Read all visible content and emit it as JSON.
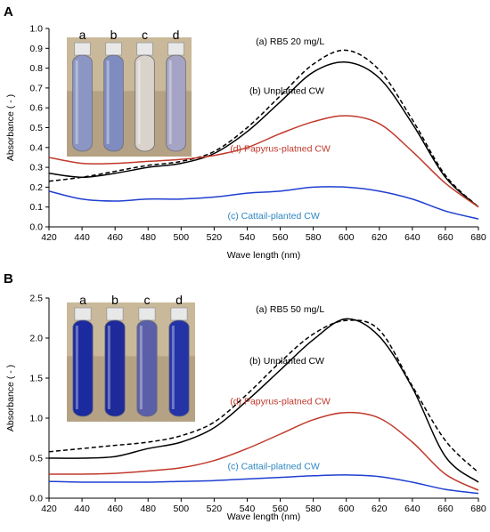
{
  "chart_data": [
    {
      "panel_label": "A",
      "type": "line",
      "xlabel": "Wave length (nm)",
      "ylabel": "Absorbance  ( - )",
      "xlim": [
        420,
        680
      ],
      "ylim": [
        0,
        1.0
      ],
      "x_ticks": [
        420,
        440,
        460,
        480,
        500,
        520,
        540,
        560,
        580,
        600,
        620,
        640,
        660,
        680
      ],
      "y_ticks": [
        0.0,
        0.1,
        0.2,
        0.3,
        0.4,
        0.5,
        0.6,
        0.7,
        0.8,
        0.9,
        1.0
      ],
      "y_tick_labels": [
        "0.0",
        "0.1",
        "0.2",
        "0.3",
        "0.4",
        "0.5",
        "0.6",
        "0.7",
        "0.8",
        "0.9",
        "1.0"
      ],
      "grid": false,
      "inset_photo": {
        "tube_labels": [
          "a",
          "b",
          "c",
          "d"
        ],
        "tube_colors": [
          "#8c96c4",
          "#7e8cbf",
          "#d9d3cb",
          "#a6a4c4"
        ]
      },
      "series": [
        {
          "name": "(a) RB5  20 mg/L",
          "color": "#000000",
          "dashed": true,
          "x": [
            420,
            440,
            460,
            480,
            500,
            520,
            540,
            560,
            580,
            600,
            620,
            640,
            660,
            680
          ],
          "y": [
            0.23,
            0.25,
            0.28,
            0.31,
            0.33,
            0.38,
            0.5,
            0.66,
            0.82,
            0.89,
            0.79,
            0.54,
            0.26,
            0.1
          ]
        },
        {
          "name": "(b) Unplanted CW",
          "color": "#000000",
          "dashed": false,
          "x": [
            420,
            440,
            460,
            480,
            500,
            520,
            540,
            560,
            580,
            600,
            620,
            640,
            660,
            680
          ],
          "y": [
            0.27,
            0.25,
            0.27,
            0.3,
            0.32,
            0.37,
            0.48,
            0.63,
            0.78,
            0.83,
            0.75,
            0.52,
            0.25,
            0.1
          ]
        },
        {
          "name": "(d) Papyrus-platned CW",
          "color": "#c0392b",
          "dashed": false,
          "x": [
            420,
            440,
            460,
            480,
            500,
            520,
            540,
            560,
            580,
            600,
            620,
            640,
            660,
            680
          ],
          "y": [
            0.35,
            0.32,
            0.32,
            0.33,
            0.34,
            0.36,
            0.4,
            0.47,
            0.53,
            0.56,
            0.52,
            0.38,
            0.22,
            0.1
          ]
        },
        {
          "name": "(c) Cattail-planted CW",
          "color": "#1f3fd0",
          "dashed": false,
          "x": [
            420,
            440,
            460,
            480,
            500,
            520,
            540,
            560,
            580,
            600,
            620,
            640,
            660,
            680
          ],
          "y": [
            0.18,
            0.14,
            0.13,
            0.14,
            0.14,
            0.15,
            0.17,
            0.18,
            0.2,
            0.2,
            0.18,
            0.14,
            0.08,
            0.04
          ]
        }
      ],
      "series_labels": [
        {
          "text": "(a) RB5  20 mg/L",
          "color": "#000000",
          "x": 566,
          "y": 0.92
        },
        {
          "text": "(b) Unplanted CW",
          "color": "#000000",
          "x": 564,
          "y": 0.67
        },
        {
          "text": "(d) Papyrus-platned CW",
          "color": "#c0392b",
          "x": 560,
          "y": 0.38
        },
        {
          "text": "(c) Cattail-planted CW",
          "color": "#2e86c1",
          "x": 556,
          "y": 0.04
        }
      ]
    },
    {
      "panel_label": "B",
      "type": "line",
      "xlabel": "Wave length (nm)",
      "ylabel": "Absorbance  ( - )",
      "xlim": [
        420,
        680
      ],
      "ylim": [
        0,
        2.5
      ],
      "x_ticks": [
        420,
        440,
        460,
        480,
        500,
        520,
        540,
        560,
        580,
        600,
        620,
        640,
        660,
        680
      ],
      "y_ticks": [
        0.0,
        0.5,
        1.0,
        1.5,
        2.0,
        2.5
      ],
      "y_tick_labels": [
        "0.0",
        "0.5",
        "1.0",
        "1.5",
        "2.0",
        "2.5"
      ],
      "grid": false,
      "inset_photo": {
        "tube_labels": [
          "a",
          "b",
          "c",
          "d"
        ],
        "tube_colors": [
          "#1c2aa0",
          "#1f2a9a",
          "#5a5fa8",
          "#2433a6"
        ]
      },
      "series": [
        {
          "name": "(a) RB5  50 mg/L",
          "color": "#000000",
          "dashed": true,
          "x": [
            420,
            440,
            460,
            480,
            500,
            520,
            540,
            560,
            580,
            600,
            620,
            640,
            660,
            680
          ],
          "y": [
            0.58,
            0.62,
            0.66,
            0.7,
            0.78,
            0.95,
            1.3,
            1.7,
            2.05,
            2.22,
            2.1,
            1.4,
            0.72,
            0.32
          ]
        },
        {
          "name": "(b) Unplanted CW",
          "color": "#000000",
          "dashed": false,
          "x": [
            420,
            440,
            460,
            480,
            500,
            520,
            540,
            560,
            580,
            600,
            620,
            640,
            660,
            680
          ],
          "y": [
            0.5,
            0.5,
            0.52,
            0.62,
            0.7,
            0.88,
            1.22,
            1.6,
            1.98,
            2.24,
            2.02,
            1.38,
            0.52,
            0.2
          ]
        },
        {
          "name": "(d) Papyrus-platned CW",
          "color": "#c0392b",
          "dashed": false,
          "x": [
            420,
            440,
            460,
            480,
            500,
            520,
            540,
            560,
            580,
            600,
            620,
            640,
            660,
            680
          ],
          "y": [
            0.3,
            0.3,
            0.31,
            0.34,
            0.38,
            0.47,
            0.62,
            0.8,
            0.98,
            1.07,
            1.0,
            0.7,
            0.3,
            0.1
          ]
        },
        {
          "name": "(c) Cattail-platned CW",
          "color": "#1f3fd0",
          "dashed": false,
          "x": [
            420,
            440,
            460,
            480,
            500,
            520,
            540,
            560,
            580,
            600,
            620,
            640,
            660,
            680
          ],
          "y": [
            0.21,
            0.2,
            0.2,
            0.2,
            0.21,
            0.22,
            0.24,
            0.26,
            0.28,
            0.29,
            0.27,
            0.2,
            0.11,
            0.06
          ]
        }
      ],
      "series_labels": [
        {
          "text": "(a) RB5  50 mg/L",
          "color": "#000000",
          "x": 566,
          "y": 2.32
        },
        {
          "text": "(b) Unplanted CW",
          "color": "#000000",
          "x": 564,
          "y": 1.68
        },
        {
          "text": "(d) Papyrus-platned CW",
          "color": "#c0392b",
          "x": 560,
          "y": 1.17
        },
        {
          "text": "(c) Cattail-platned CW",
          "color": "#2e86c1",
          "x": 556,
          "y": 0.36
        }
      ]
    }
  ]
}
